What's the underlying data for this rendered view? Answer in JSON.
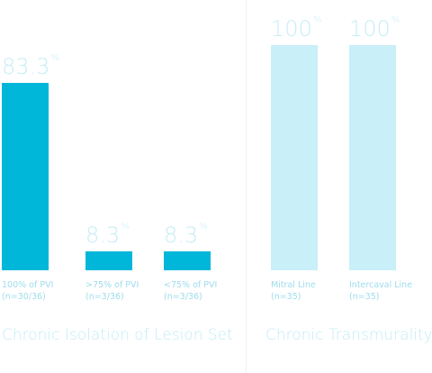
{
  "chart_data": [
    {
      "type": "bar",
      "title": "Chronic Isolation of Lesion Set",
      "unit": "%",
      "ylim": [
        0,
        100
      ],
      "bar_color": "#00b7d9",
      "value_color": "#c7edf6",
      "label_color": "#9fdced",
      "title_color": "#c2ecf5",
      "categories": [
        {
          "label": "100% of PVI",
          "sub": "(n=30/36)"
        },
        {
          "label": ">75% of PVI",
          "sub": "(n=3/36)"
        },
        {
          "label": "<75% of PVI",
          "sub": "(n=3/36)"
        }
      ],
      "values": [
        83.3,
        8.3,
        8.3
      ],
      "value_labels": [
        "83.3",
        "8.3",
        "8.3"
      ]
    },
    {
      "type": "bar",
      "title": "Chronic Transmurality",
      "unit": "%",
      "ylim": [
        0,
        100
      ],
      "bar_color": "#c9eff8",
      "value_color": "#c7edf6",
      "label_color": "#9fdced",
      "title_color": "#c2ecf5",
      "categories": [
        {
          "label": "Mitral Line",
          "sub": "(n=35)"
        },
        {
          "label": "Intercaval Line",
          "sub": "(n=35)"
        }
      ],
      "values": [
        100,
        100
      ],
      "value_labels": [
        "100",
        "100"
      ]
    }
  ]
}
